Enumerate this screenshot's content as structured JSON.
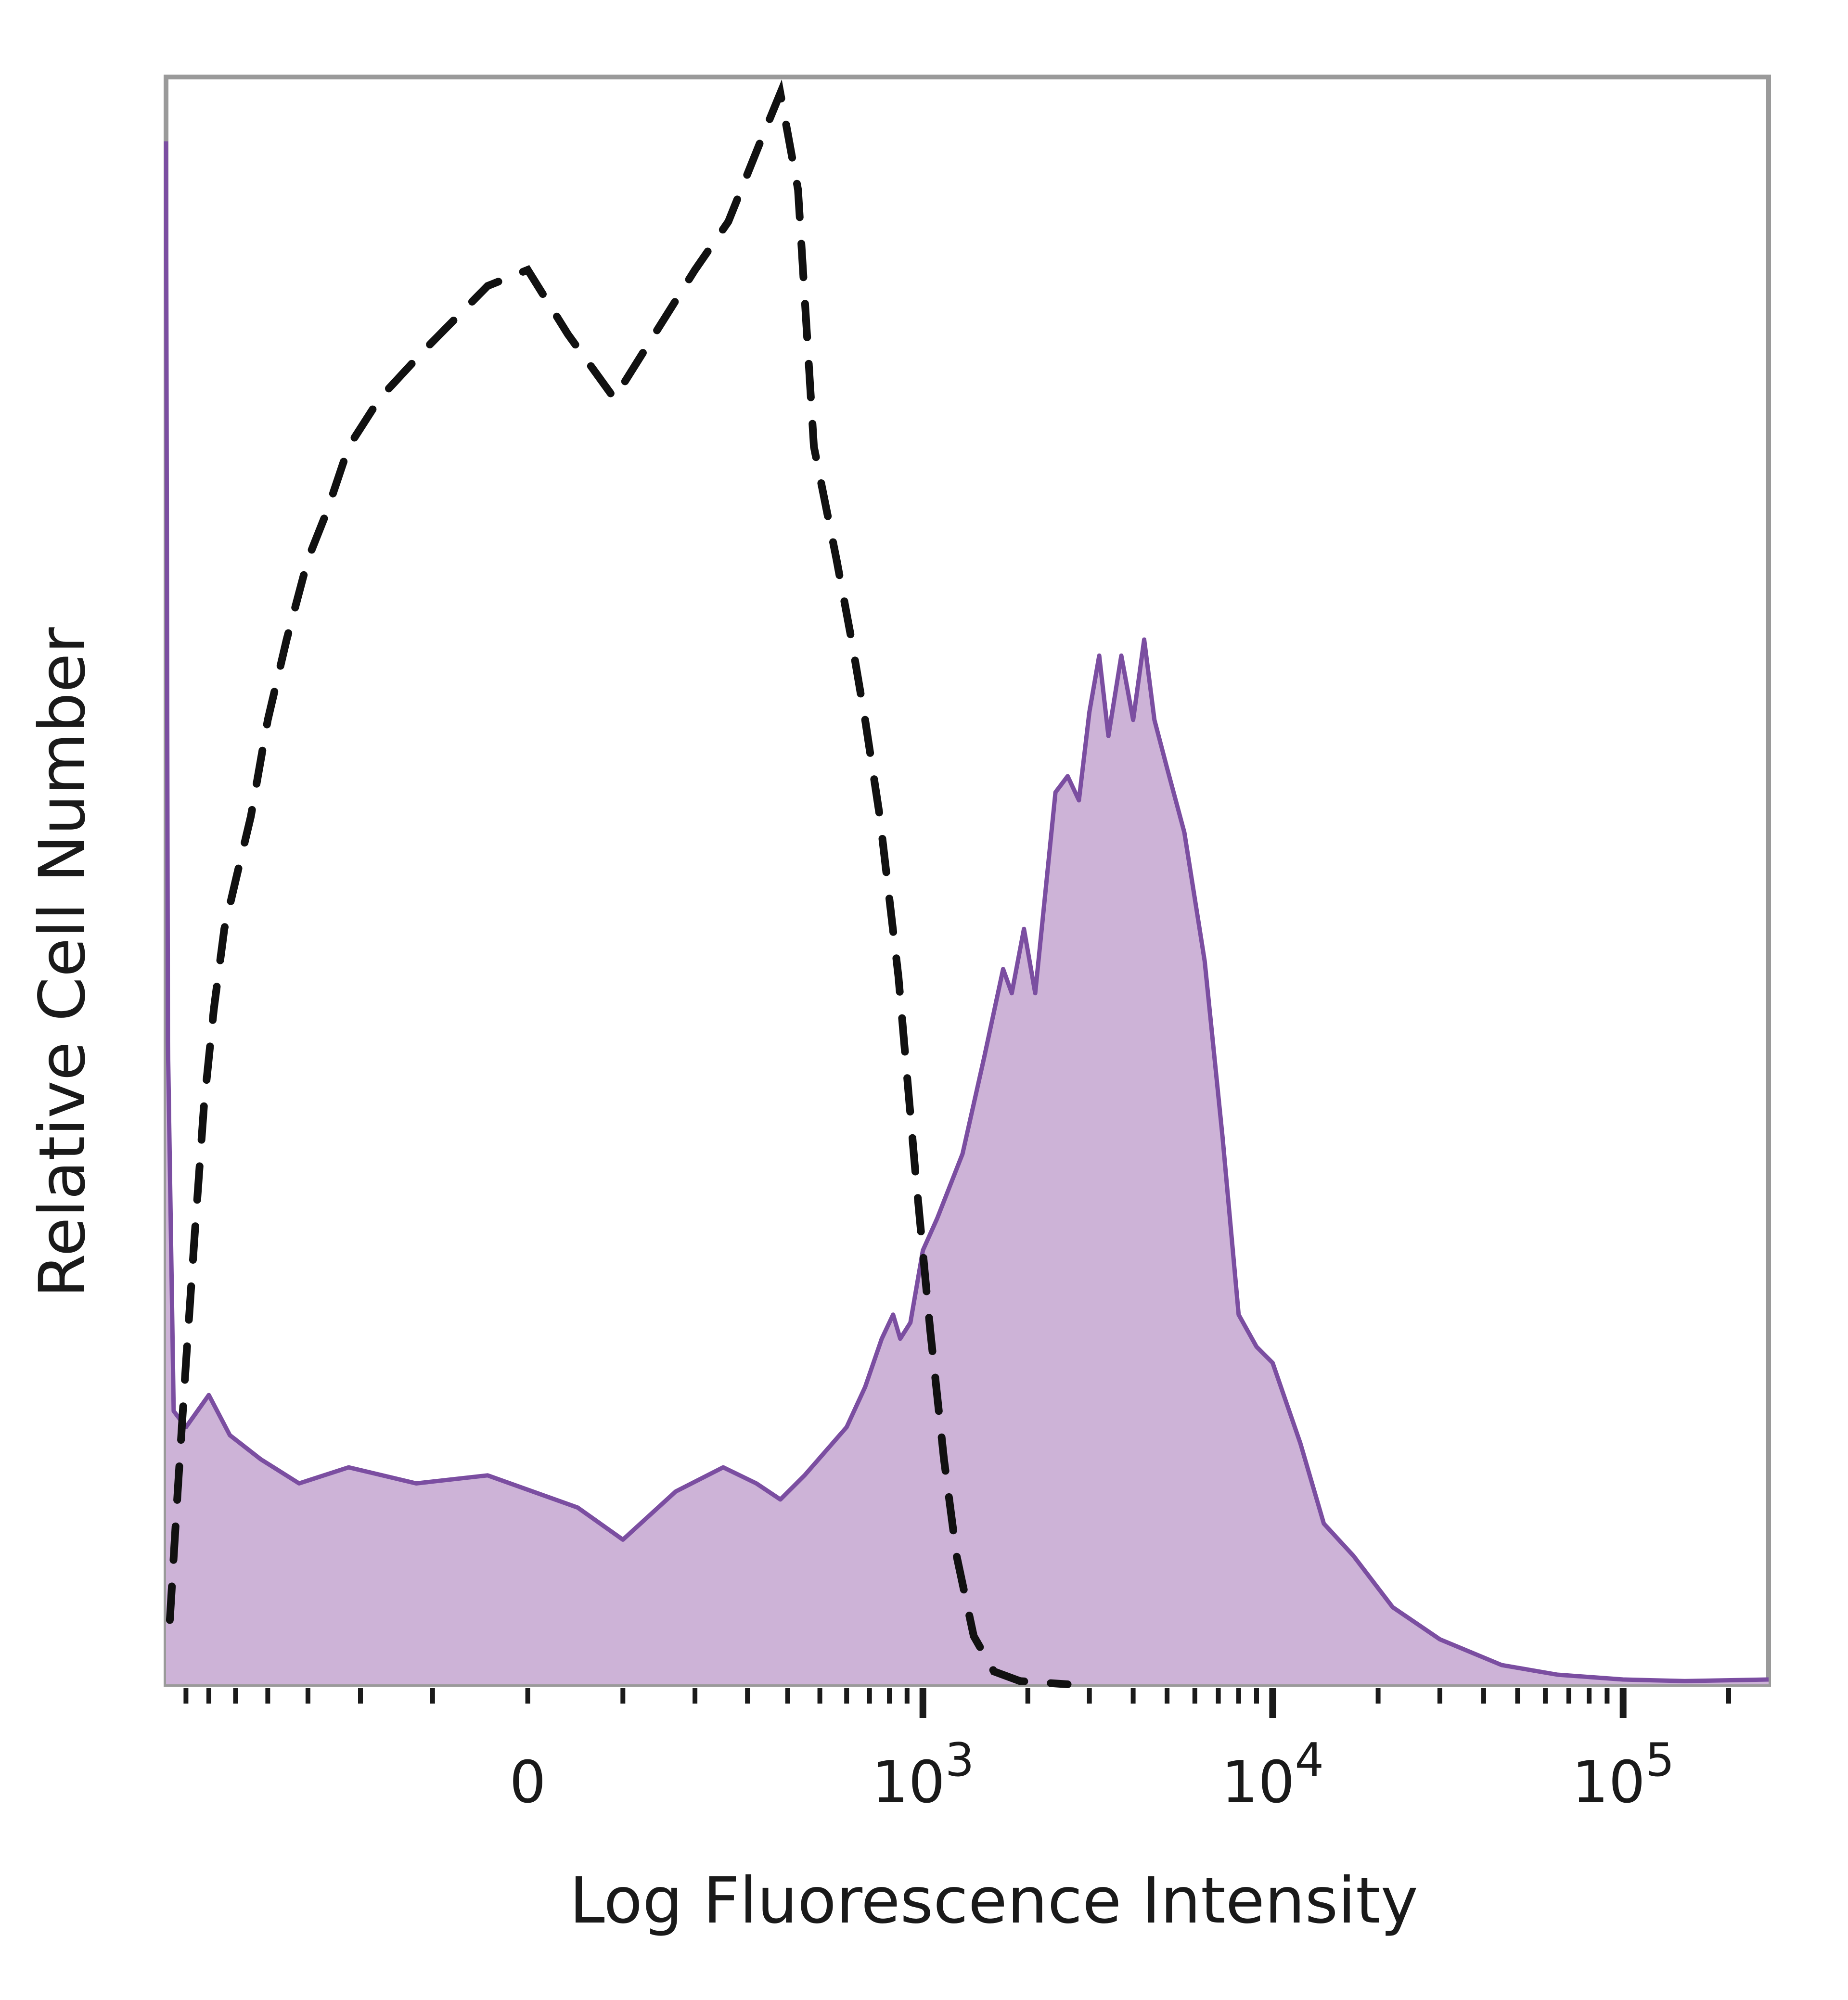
{
  "chart_data": {
    "type": "area",
    "xlabel": "Log Fluorescence Intensity",
    "ylabel": "Relative Cell Number",
    "x_scale": "biexponential",
    "grid": false,
    "legend": "none",
    "tick_labels": [
      {
        "value": 0,
        "label": "0"
      },
      {
        "value": 1000,
        "label": "10",
        "sup": "3"
      },
      {
        "value": 10000,
        "label": "10",
        "sup": "4"
      },
      {
        "value": 100000,
        "label": "10",
        "sup": "5"
      }
    ],
    "colors": {
      "stained_fill": "#cdb3d7",
      "stained_line": "#7b4ea1",
      "control_line": "#111111",
      "frame": "#9a9a9a"
    },
    "series": [
      {
        "style": "filled-purple",
        "points": [
          [
            -800,
            96
          ],
          [
            -790,
            40
          ],
          [
            -760,
            17
          ],
          [
            -700,
            16
          ],
          [
            -600,
            18
          ],
          [
            -520,
            15.5
          ],
          [
            -420,
            14
          ],
          [
            -320,
            12.5
          ],
          [
            -220,
            13.5
          ],
          [
            -120,
            12.5
          ],
          [
            -40,
            13
          ],
          [
            50,
            11
          ],
          [
            100,
            9
          ],
          [
            170,
            12
          ],
          [
            250,
            13.5
          ],
          [
            320,
            12.5
          ],
          [
            380,
            11.5
          ],
          [
            450,
            13
          ],
          [
            520,
            14.5
          ],
          [
            600,
            16
          ],
          [
            680,
            18.5
          ],
          [
            760,
            21.5
          ],
          [
            820,
            23
          ],
          [
            860,
            21.5
          ],
          [
            920,
            22.5
          ],
          [
            1000,
            27
          ],
          [
            1100,
            29
          ],
          [
            1300,
            33
          ],
          [
            1500,
            39
          ],
          [
            1700,
            44.5
          ],
          [
            1800,
            43
          ],
          [
            1950,
            47
          ],
          [
            2100,
            43
          ],
          [
            2400,
            55.5
          ],
          [
            2600,
            56.5
          ],
          [
            2800,
            55
          ],
          [
            3000,
            60.5
          ],
          [
            3200,
            64
          ],
          [
            3400,
            59
          ],
          [
            3700,
            64
          ],
          [
            4000,
            60
          ],
          [
            4300,
            65
          ],
          [
            4600,
            60
          ],
          [
            5000,
            57
          ],
          [
            5600,
            53
          ],
          [
            6400,
            45
          ],
          [
            7200,
            34
          ],
          [
            8000,
            23
          ],
          [
            9000,
            21
          ],
          [
            10000,
            20
          ],
          [
            12000,
            15
          ],
          [
            14000,
            10
          ],
          [
            17000,
            8
          ],
          [
            22000,
            4.8
          ],
          [
            30000,
            2.8
          ],
          [
            45000,
            1.2
          ],
          [
            65000,
            0.6
          ],
          [
            100000,
            0.3
          ],
          [
            150000,
            0.2
          ],
          [
            260000,
            0.3
          ]
        ]
      },
      {
        "style": "dashed-black",
        "points": [
          [
            -780,
            4
          ],
          [
            -740,
            12
          ],
          [
            -700,
            20
          ],
          [
            -660,
            28
          ],
          [
            -620,
            36
          ],
          [
            -580,
            42
          ],
          [
            -540,
            47
          ],
          [
            -500,
            50
          ],
          [
            -450,
            54
          ],
          [
            -400,
            60
          ],
          [
            -350,
            65
          ],
          [
            -300,
            70
          ],
          [
            -260,
            73
          ],
          [
            -220,
            77
          ],
          [
            -170,
            80
          ],
          [
            -110,
            83
          ],
          [
            -40,
            87
          ],
          [
            0,
            88
          ],
          [
            40,
            84
          ],
          [
            90,
            80
          ],
          [
            140,
            84
          ],
          [
            200,
            88
          ],
          [
            260,
            91
          ],
          [
            330,
            96
          ],
          [
            380,
            99
          ],
          [
            430,
            93
          ],
          [
            480,
            77
          ],
          [
            560,
            70
          ],
          [
            620,
            65
          ],
          [
            680,
            60
          ],
          [
            750,
            54
          ],
          [
            850,
            44
          ],
          [
            950,
            32
          ],
          [
            1050,
            22
          ],
          [
            1150,
            14
          ],
          [
            1250,
            8
          ],
          [
            1400,
            3
          ],
          [
            1600,
            0.8
          ],
          [
            1900,
            0.2
          ],
          [
            2600,
            0
          ]
        ]
      }
    ]
  }
}
